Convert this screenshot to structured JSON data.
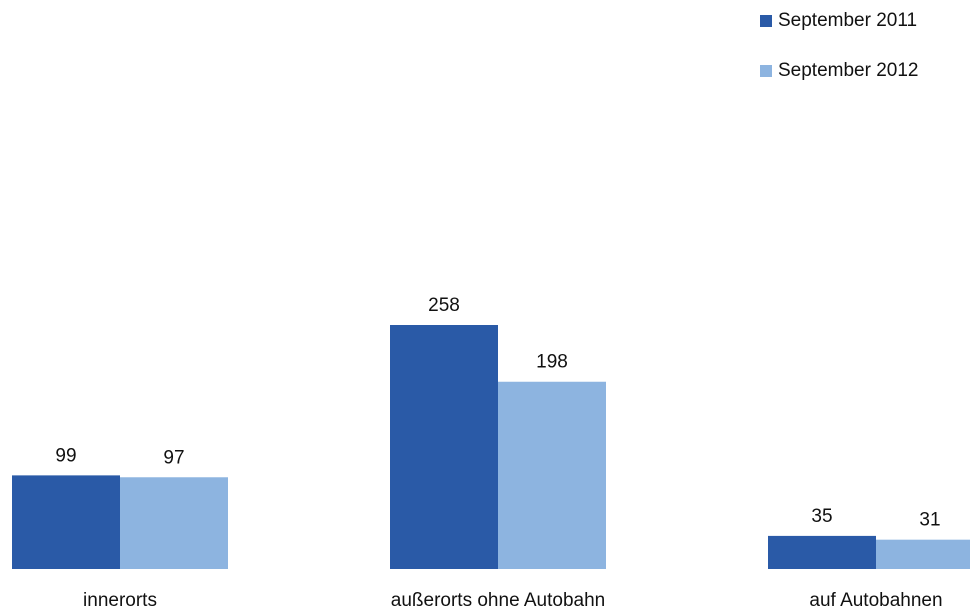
{
  "chart_data": {
    "type": "bar",
    "categories": [
      "innerorts",
      "außerorts ohne Autobahn",
      "auf Autobahnen"
    ],
    "series": [
      {
        "name": "September 2011",
        "values": [
          99,
          258,
          35
        ],
        "color": "#2a5aa7"
      },
      {
        "name": "September 2012",
        "values": [
          97,
          198,
          31
        ],
        "color": "#8db4e0"
      }
    ],
    "title": "",
    "xlabel": "",
    "ylabel": "",
    "ylim": [
      0,
      258
    ],
    "grid": false,
    "legend_position": "top-right"
  }
}
